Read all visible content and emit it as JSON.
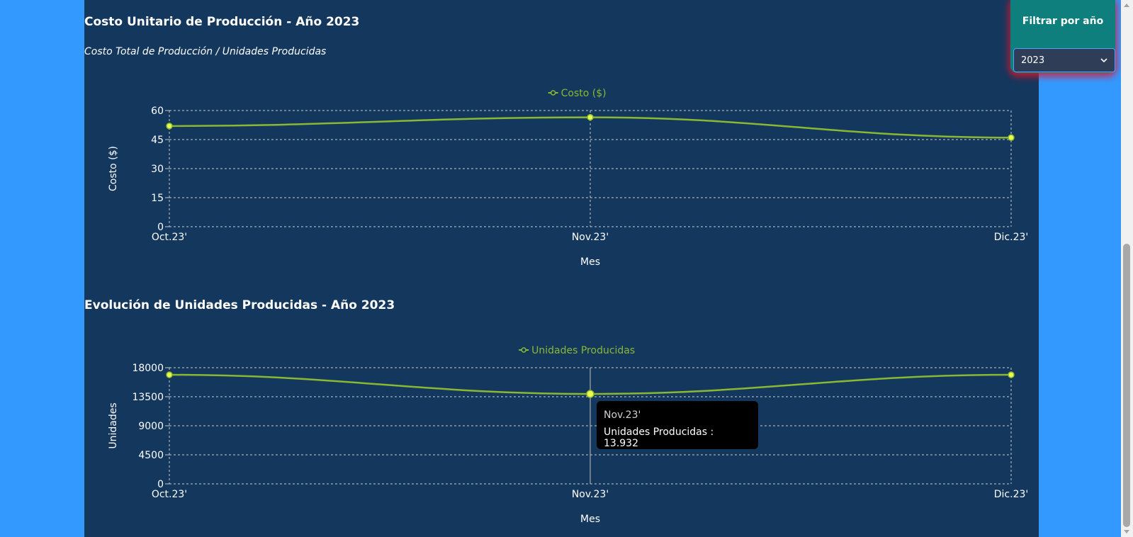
{
  "colors": {
    "background": "#3399ff",
    "panel": "#14375e",
    "line": "#8ab833",
    "point": "#eaff4a",
    "legend_text": "#8ab833",
    "grid": "#c8c8c8",
    "filter_bg": "#0e7f7c",
    "filter_glow": "#e61428"
  },
  "filter": {
    "title": "Filtrar por año",
    "selected": "2023",
    "chevron_icon": "chevron-down-icon"
  },
  "section1": {
    "title": "Costo Unitario de Producción - Año 2023",
    "subtitle": "Costo Total de Producción / Unidades Producidas"
  },
  "section2": {
    "title": "Evolución de Unidades Producidas - Año 2023"
  },
  "tooltip": {
    "title": "Nov.23'",
    "body": "Unidades Producidas : 13.932"
  },
  "chart_data": [
    {
      "type": "line",
      "categories": [
        "Oct.23'",
        "Nov.23'",
        "Dic.23'"
      ],
      "series": [
        {
          "name": "Costo ($)",
          "values": [
            52,
            56.5,
            46
          ]
        }
      ],
      "xlabel": "Mes",
      "ylabel": "Costo ($)",
      "ylim": [
        0,
        60
      ],
      "yticks": [
        0,
        15,
        30,
        45,
        60
      ],
      "grid": true,
      "legend": "top-center"
    },
    {
      "type": "line",
      "categories": [
        "Oct.23'",
        "Nov.23'",
        "Dic.23'"
      ],
      "series": [
        {
          "name": "Unidades Producidas",
          "values": [
            16900,
            13932,
            16900
          ]
        }
      ],
      "xlabel": "Mes",
      "ylabel": "Unidades",
      "ylim": [
        0,
        18000
      ],
      "yticks": [
        0,
        4500,
        9000,
        13500,
        18000
      ],
      "grid": true,
      "legend": "top-center",
      "highlighted_category": "Nov.23'"
    }
  ]
}
